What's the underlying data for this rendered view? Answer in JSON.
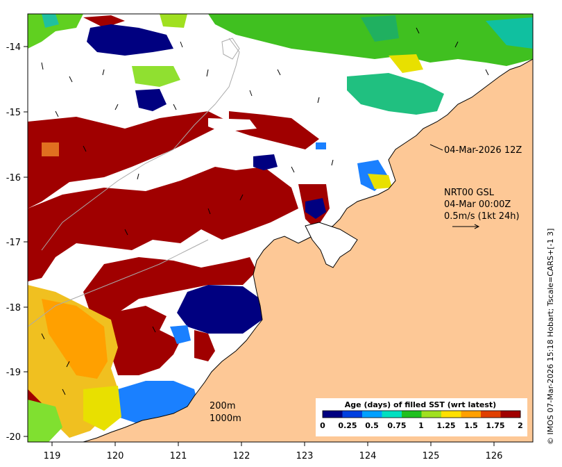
{
  "map": {
    "lon_ticks": [
      "119",
      "120",
      "121",
      "122",
      "123",
      "124",
      "125",
      "126"
    ],
    "lat_ticks": [
      "-14",
      "-15",
      "-16",
      "-17",
      "-18",
      "-19",
      "-20"
    ],
    "colors": {
      "land": "#fdc896",
      "ocean_no_data": "#ffffff",
      "coastline": "#000000",
      "bathymetry": "#aaaaaa"
    }
  },
  "annotations": {
    "timestamp": "04-Mar-2026 12Z",
    "current_source": "NRT00 GSL",
    "current_time": "04-Mar 00:00Z",
    "current_scale": "0.5m/s (1kt 24h)",
    "depth_contour_1": "200m",
    "depth_contour_2": "1000m"
  },
  "colorbar": {
    "title": "Age (days) of filled SST (wrt latest)",
    "tick_labels": [
      "0",
      "0.25",
      "0.5",
      "0.75",
      "1",
      "1.25",
      "1.5",
      "1.75",
      "2"
    ],
    "colors": [
      "#000080",
      "#0040e0",
      "#00a0ff",
      "#00e0c0",
      "#20c020",
      "#a0e020",
      "#ffe000",
      "#ffa000",
      "#e04000",
      "#a00000"
    ]
  },
  "credit": "© IMOS 07-Mar-2026 15:18 Hobart; Tscale=CARS+[-1 3]"
}
